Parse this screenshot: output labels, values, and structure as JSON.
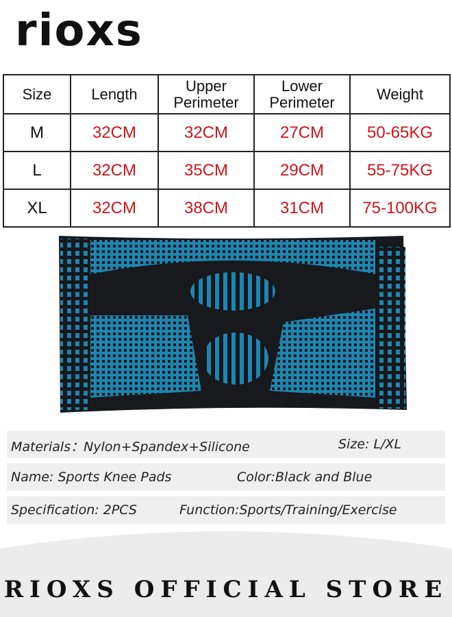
{
  "brand": "rioxs",
  "table": {
    "header": [
      "Size",
      "Length",
      "Upper Perimeter",
      "Lower Perimeter",
      "Weight"
    ],
    "rows": [
      [
        "M",
        "32CM",
        "32CM",
        "27CM",
        "50-65KG"
      ],
      [
        "L",
        "32CM",
        "35CM",
        "29CM",
        "55-75KG"
      ],
      [
        "XL",
        "32CM",
        "38CM",
        "31CM",
        "75-100KG"
      ]
    ]
  },
  "info": [
    [
      "Materials：Nylon+Spandex+Silicone",
      "Size: L/XL"
    ],
    [
      "Name: Sports Knee Pads",
      "Color:Black and Blue"
    ],
    [
      "Specification: 2PCS",
      "Function:Sports/Training/Exercise"
    ]
  ],
  "footer": "RIOXS OFFICIAL STORE"
}
